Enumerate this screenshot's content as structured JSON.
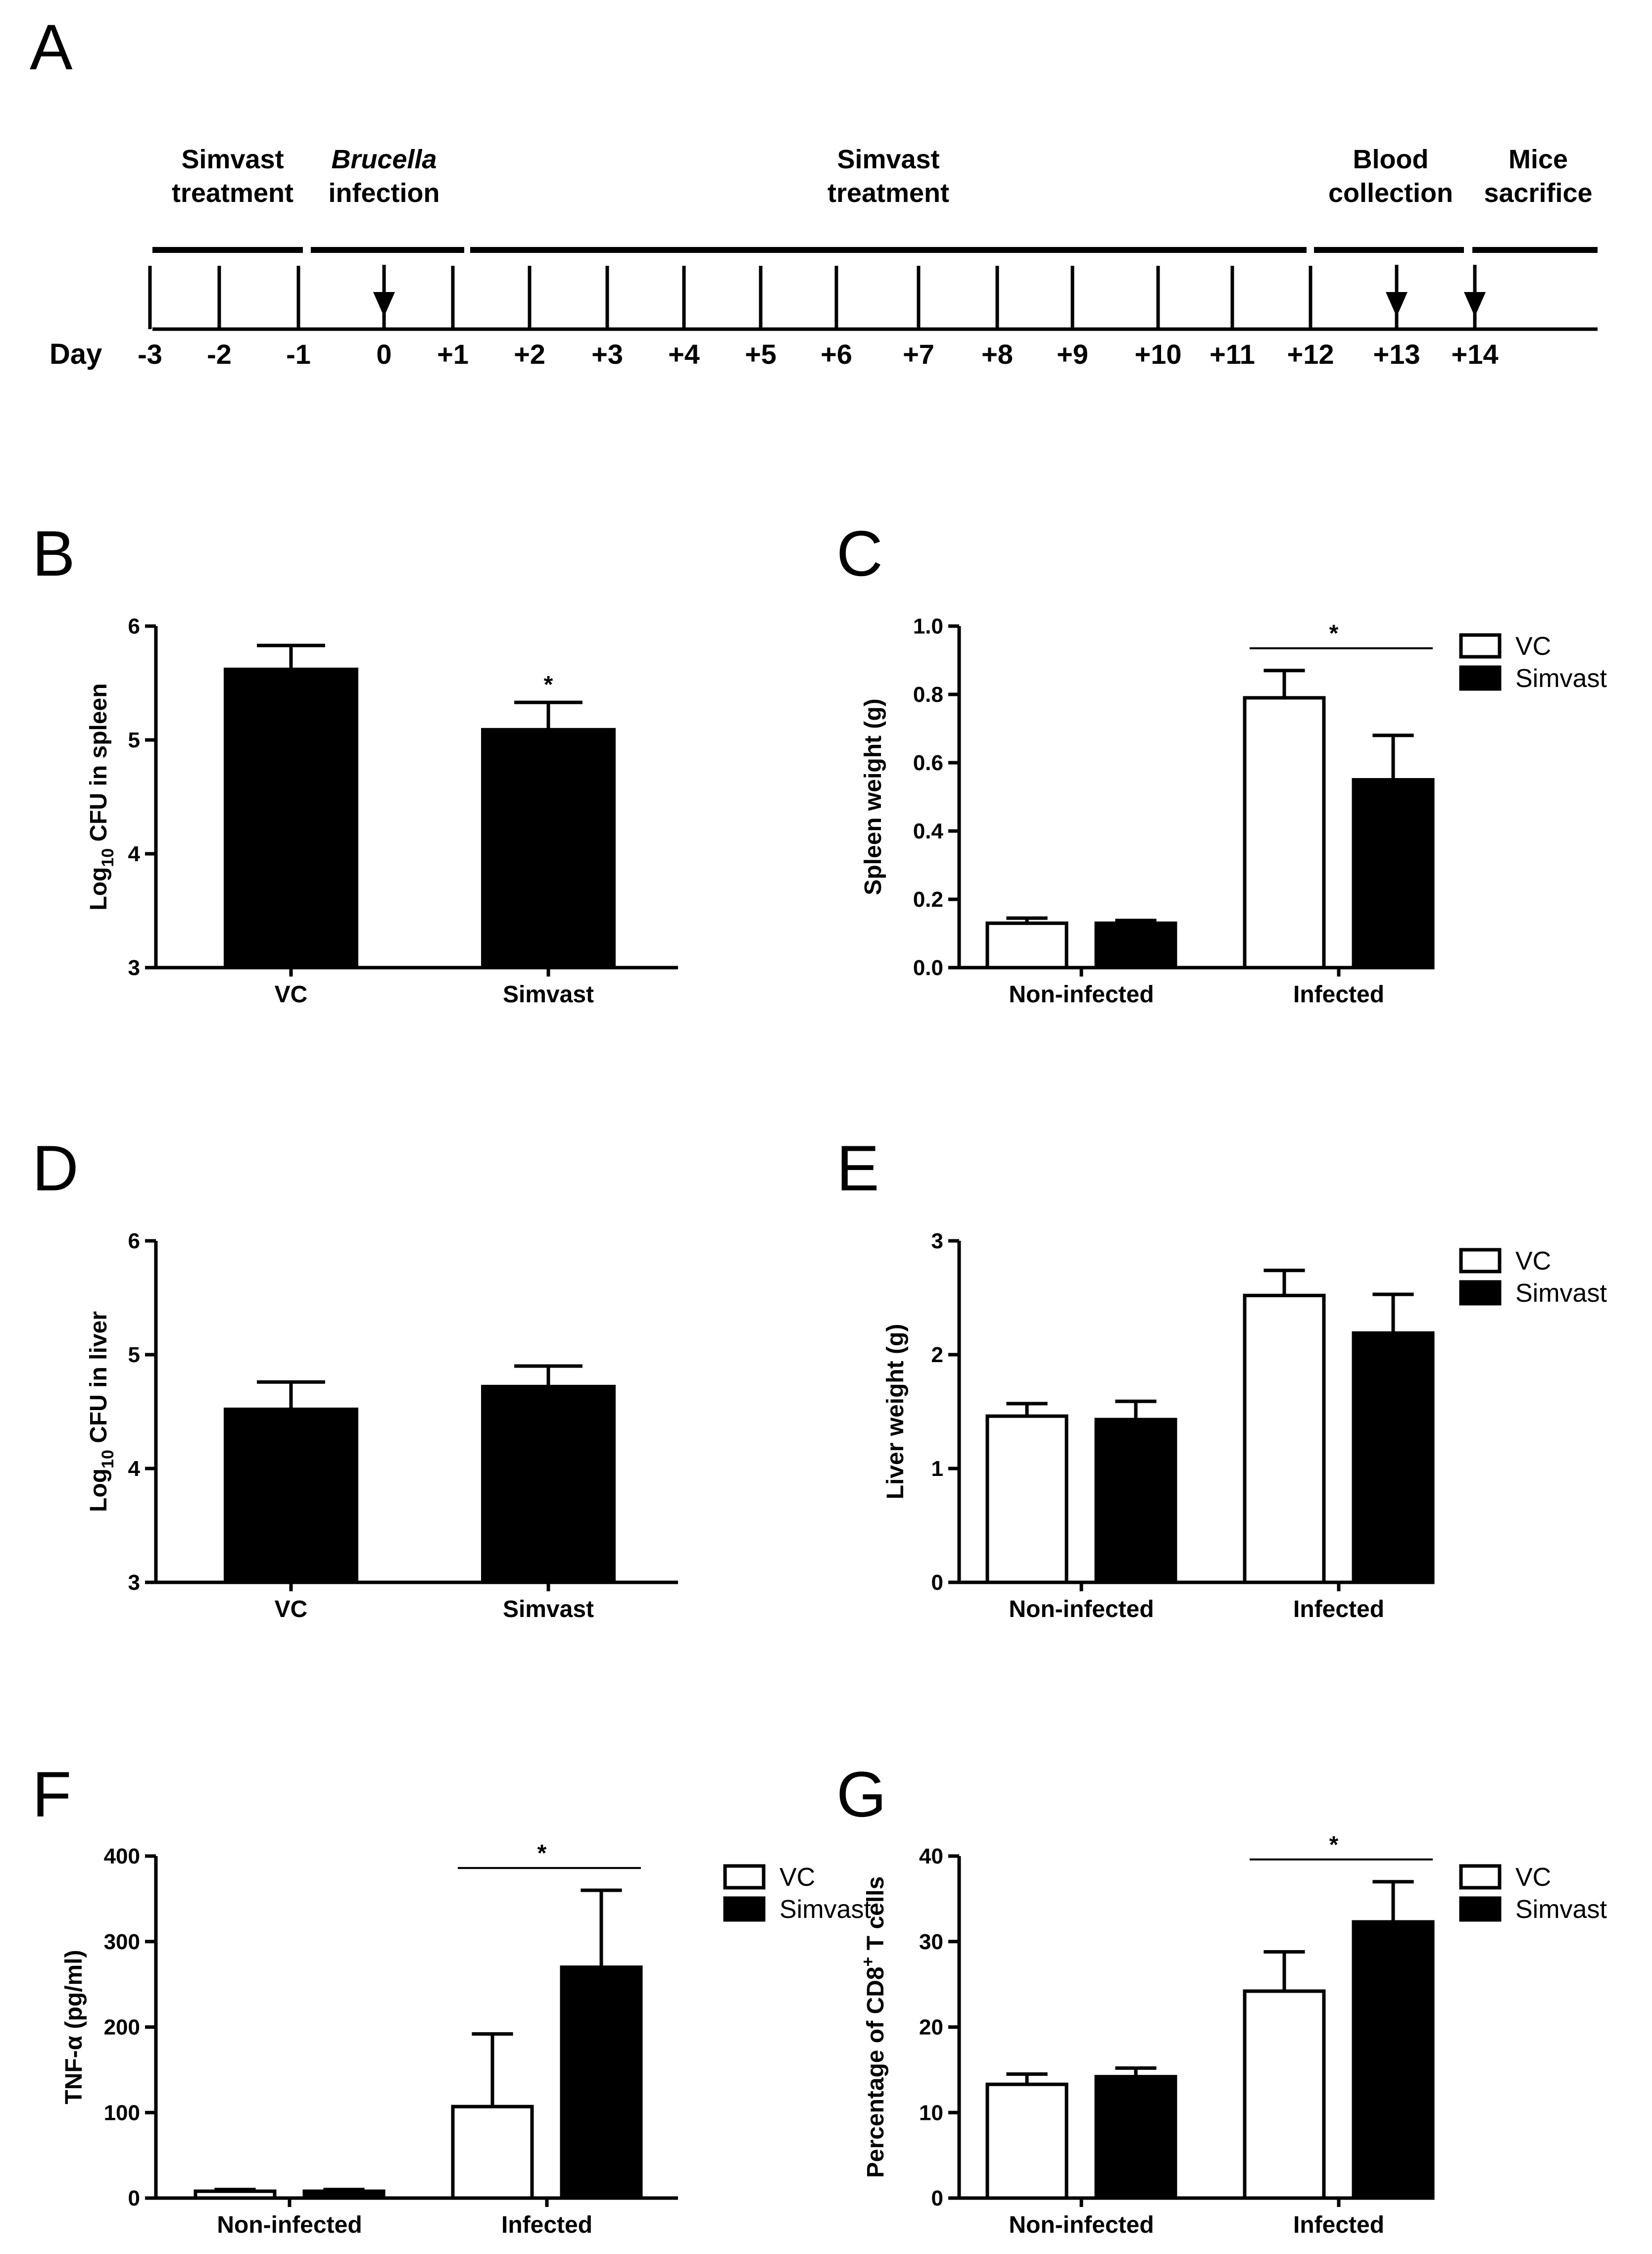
{
  "figure": {
    "panel_a": {
      "letter": "A",
      "day_label": "Day",
      "days": [
        "-3",
        "-2",
        "-1",
        "0",
        "+1",
        "+2",
        "+3",
        "+4",
        "+5",
        "+6",
        "+7",
        "+8",
        "+9",
        "+10",
        "+11",
        "+12",
        "+13",
        "+14"
      ],
      "phases": [
        {
          "line1": "Simvast",
          "line2": "treatment",
          "line1_italic": false
        },
        {
          "line1": "Brucella",
          "line2": "infection",
          "line1_italic": true
        },
        {
          "line1": "Simvast",
          "line2": "treatment",
          "line1_italic": false
        },
        {
          "line1": "Blood",
          "line2": "collection",
          "line1_italic": false
        },
        {
          "line1": "Mice",
          "line2": "sacrifice",
          "line1_italic": false
        }
      ],
      "arrow_days": [
        "0",
        "+13",
        "+14"
      ]
    }
  },
  "chart_data": [
    {
      "panel": "B",
      "type": "bar",
      "title": "",
      "ylabel_parts": [
        "Log",
        "10",
        " CFU in spleen"
      ],
      "xlabel": "",
      "categories": [
        "VC",
        "Simvast"
      ],
      "values": [
        5.62,
        5.09
      ],
      "errors": [
        0.21,
        0.24
      ],
      "ylim": [
        3,
        6
      ],
      "yticks": [
        "3",
        "4",
        "5",
        "6"
      ],
      "annotations": [
        {
          "bar": 1,
          "text": "*"
        }
      ]
    },
    {
      "panel": "C",
      "type": "bar",
      "title": "",
      "ylabel_parts": [
        "Spleen weight (g)"
      ],
      "categories": [
        "Non-infected",
        "Infected"
      ],
      "series": [
        {
          "name": "VC",
          "values": [
            0.13,
            0.79
          ],
          "errors": [
            0.015,
            0.08
          ],
          "color": "#ffffff"
        },
        {
          "name": "Simvast",
          "values": [
            0.13,
            0.55
          ],
          "errors": [
            0.008,
            0.13
          ],
          "color": "#000000"
        }
      ],
      "ylim": [
        0,
        1.0
      ],
      "yticks": [
        "0.0",
        "0.2",
        "0.4",
        "0.6",
        "0.8",
        "1.0"
      ],
      "legend": "top-right",
      "significance": [
        {
          "category": 1,
          "text": "*"
        }
      ]
    },
    {
      "panel": "D",
      "type": "bar",
      "title": "",
      "ylabel_parts": [
        "Log",
        "10",
        " CFU in liver"
      ],
      "categories": [
        "VC",
        "Simvast"
      ],
      "values": [
        4.52,
        4.72
      ],
      "errors": [
        0.24,
        0.18
      ],
      "ylim": [
        3,
        6
      ],
      "yticks": [
        "3",
        "4",
        "5",
        "6"
      ],
      "annotations": []
    },
    {
      "panel": "E",
      "type": "bar",
      "title": "",
      "ylabel_parts": [
        "Liver weight (g)"
      ],
      "categories": [
        "Non-infected",
        "Infected"
      ],
      "series": [
        {
          "name": "VC",
          "values": [
            1.46,
            2.52
          ],
          "errors": [
            0.11,
            0.22
          ],
          "color": "#ffffff"
        },
        {
          "name": "Simvast",
          "values": [
            1.43,
            2.19
          ],
          "errors": [
            0.16,
            0.34
          ],
          "color": "#000000"
        }
      ],
      "ylim": [
        0,
        3
      ],
      "yticks": [
        "0",
        "1",
        "2",
        "3"
      ],
      "legend": "top-right",
      "significance": []
    },
    {
      "panel": "F",
      "type": "bar",
      "title": "",
      "ylabel_parts": [
        "TNF-α (pg/ml)"
      ],
      "categories": [
        "Non-infected",
        "Infected"
      ],
      "series": [
        {
          "name": "VC",
          "values": [
            8,
            107
          ],
          "errors": [
            2,
            85
          ],
          "color": "#ffffff"
        },
        {
          "name": "Simvast",
          "values": [
            8,
            270
          ],
          "errors": [
            2,
            90
          ],
          "color": "#000000"
        }
      ],
      "ylim": [
        0,
        400
      ],
      "yticks": [
        "0",
        "100",
        "200",
        "300",
        "400"
      ],
      "legend": "top-right",
      "significance": [
        {
          "category": 1,
          "text": "*"
        }
      ]
    },
    {
      "panel": "G",
      "type": "bar",
      "title": "",
      "ylabel_parts": [
        "Percentage of CD8",
        "+",
        " T cells"
      ],
      "categories": [
        "Non-infected",
        "Infected"
      ],
      "series": [
        {
          "name": "VC",
          "values": [
            13.3,
            24.2
          ],
          "errors": [
            1.2,
            4.6
          ],
          "color": "#ffffff"
        },
        {
          "name": "Simvast",
          "values": [
            14.2,
            32.3
          ],
          "errors": [
            1.0,
            4.7
          ],
          "color": "#000000"
        }
      ],
      "ylim": [
        0,
        40
      ],
      "yticks": [
        "0",
        "10",
        "20",
        "30",
        "40"
      ],
      "legend": "top-right",
      "significance": [
        {
          "category": 1,
          "text": "*"
        }
      ]
    }
  ]
}
